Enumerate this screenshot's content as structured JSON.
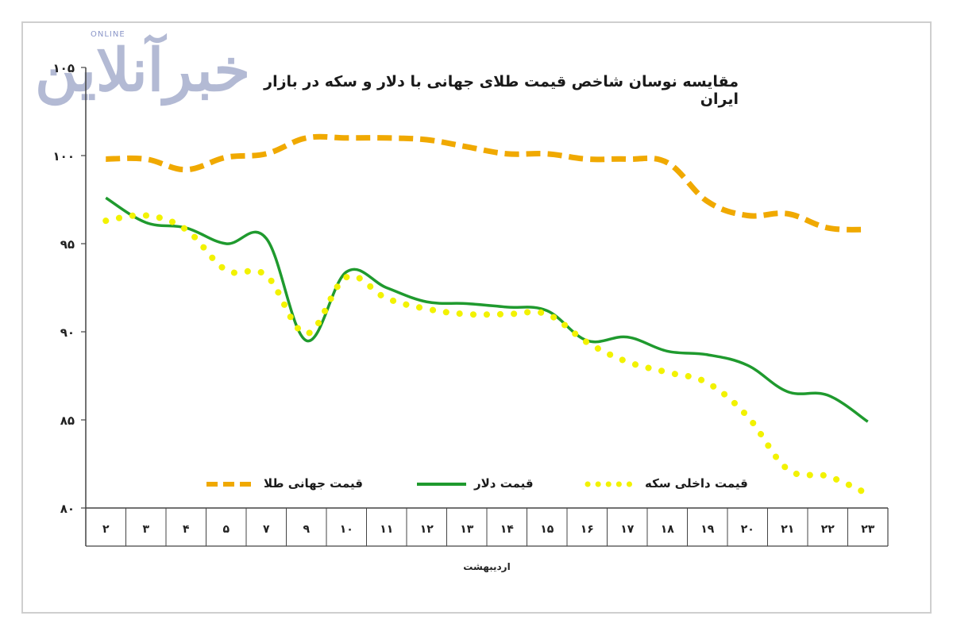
{
  "header": {
    "title": "مقایسه نوسان شاخص قیمت طلای جهانی با دلار و سکه در بازار ایران"
  },
  "watermark": {
    "logo_text": "خبرآنلاین",
    "logo_sub": "ONLINE"
  },
  "colors": {
    "gold": "#f0a900",
    "dollar": "#1f9a2e",
    "coin": "#f2f200",
    "axis": "#444444",
    "grid": "#d8d8d8"
  },
  "chart_data": {
    "type": "line",
    "title": "مقایسه نوسان شاخص قیمت طلای جهانی با دلار و سکه در بازار ایران",
    "xlabel": "اردیبهشت",
    "ylabel": "",
    "ylim": [
      80,
      105
    ],
    "yticks": [
      "۸۰",
      "۸۵",
      "۹۰",
      "۹۵",
      "۱۰۰",
      "۱۰۵"
    ],
    "categories": [
      "۲",
      "۳",
      "۴",
      "۵",
      "۷",
      "۹",
      "۱۰",
      "۱۱",
      "۱۲",
      "۱۳",
      "۱۴",
      "۱۵",
      "۱۶",
      "۱۷",
      "۱۸",
      "۱۹",
      "۲۰",
      "۲۱",
      "۲۲",
      "۲۳"
    ],
    "series": [
      {
        "name": "قیمت جهانی طلا",
        "style": "dashed",
        "color": "#f0a900",
        "values": [
          99.8,
          99.8,
          99.2,
          99.9,
          100.1,
          101.0,
          101.0,
          101.0,
          100.9,
          100.5,
          100.1,
          100.1,
          99.8,
          99.8,
          99.6,
          97.4,
          96.6,
          96.7,
          95.9,
          95.8
        ]
      },
      {
        "name": "قیمت دلار",
        "style": "solid",
        "color": "#1f9a2e",
        "values": [
          97.6,
          96.2,
          95.9,
          95.0,
          95.3,
          89.5,
          93.4,
          92.5,
          91.7,
          91.6,
          91.4,
          91.2,
          89.5,
          89.7,
          88.9,
          88.7,
          88.1,
          86.6,
          86.4,
          84.9
        ]
      },
      {
        "name": "قیمت داخلی سکه",
        "style": "dotted",
        "color": "#f2f200",
        "values": [
          96.3,
          96.6,
          95.8,
          93.5,
          93.2,
          89.9,
          93.1,
          91.9,
          91.3,
          91.0,
          91.0,
          91.0,
          89.4,
          88.3,
          87.7,
          87.1,
          85.2,
          82.2,
          81.8,
          80.8
        ]
      }
    ],
    "legend_position": "bottom",
    "grid": false
  }
}
